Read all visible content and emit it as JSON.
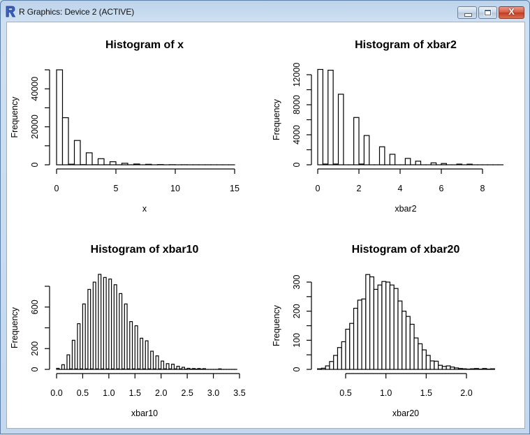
{
  "window": {
    "title": "R Graphics: Device 2 (ACTIVE)",
    "app_icon": "r-logo-icon",
    "buttons": {
      "minimize": "minimize-icon",
      "maximize": "maximize-icon",
      "close": "close-icon",
      "close_glyph": "X"
    }
  },
  "chart_data": [
    {
      "type": "bar",
      "title": "Histogram of x",
      "xlabel": "x",
      "ylabel": "Frequency",
      "xlim": [
        0,
        15
      ],
      "ylim": [
        0,
        50000
      ],
      "x_ticks": [
        0,
        5,
        10,
        15
      ],
      "x_tick_labels": [
        "0",
        "5",
        "10",
        "15"
      ],
      "y_ticks": [
        0,
        10000,
        20000,
        30000,
        40000,
        50000
      ],
      "y_tick_labels": [
        "0",
        "",
        "20000",
        "",
        "40000",
        ""
      ],
      "bin_width": 0.5,
      "bin_start": 0,
      "values": [
        50000,
        24800,
        300,
        12800,
        100,
        6300,
        50,
        3200,
        30,
        1600,
        20,
        800,
        10,
        400,
        5,
        250,
        0,
        120,
        0,
        60,
        0,
        30,
        0,
        15,
        0,
        8,
        0,
        4,
        0,
        2
      ]
    },
    {
      "type": "bar",
      "title": "Histogram of xbar2",
      "xlabel": "xbar2",
      "ylabel": "Frequency",
      "xlim": [
        0,
        8
      ],
      "ylim": [
        0,
        12000
      ],
      "x_ticks": [
        0,
        2,
        4,
        6,
        8
      ],
      "x_tick_labels": [
        "0",
        "2",
        "4",
        "6",
        "8"
      ],
      "y_ticks": [
        0,
        2000,
        4000,
        6000,
        8000,
        10000,
        12000
      ],
      "y_tick_labels": [
        "0",
        "",
        "4000",
        "",
        "8000",
        "",
        "12000"
      ],
      "bin_width": 0.25,
      "bin_start": 0,
      "values": [
        12700,
        100,
        12600,
        100,
        9400,
        0,
        0,
        6300,
        100,
        3900,
        0,
        0,
        2400,
        0,
        1400,
        0,
        0,
        850,
        0,
        480,
        0,
        0,
        260,
        0,
        170,
        0,
        0,
        90,
        0,
        80,
        0,
        0,
        0,
        0,
        0,
        0
      ]
    },
    {
      "type": "bar",
      "title": "Histogram of xbar10",
      "xlabel": "xbar10",
      "ylabel": "Frequency",
      "xlim": [
        0,
        3.5
      ],
      "ylim": [
        0,
        800
      ],
      "x_ticks": [
        0.0,
        0.5,
        1.0,
        1.5,
        2.0,
        2.5,
        3.0,
        3.5
      ],
      "x_tick_labels": [
        "0.0",
        "0.5",
        "1.0",
        "1.5",
        "2.0",
        "2.5",
        "3.0",
        "3.5"
      ],
      "y_ticks": [
        0,
        200,
        400,
        600,
        800
      ],
      "y_tick_labels": [
        "0",
        "200",
        "",
        "600",
        ""
      ],
      "bin_width": 0.05,
      "bin_start": 0,
      "values": [
        10,
        0,
        45,
        0,
        140,
        5,
        280,
        5,
        440,
        5,
        630,
        5,
        770,
        5,
        840,
        5,
        915,
        5,
        885,
        5,
        870,
        5,
        815,
        5,
        730,
        5,
        630,
        5,
        460,
        5,
        420,
        5,
        300,
        5,
        275,
        5,
        175,
        5,
        130,
        5,
        80,
        5,
        55,
        5,
        50,
        5,
        30,
        5,
        20,
        3,
        10,
        3,
        8,
        3,
        8,
        3,
        7,
        0,
        0,
        0,
        0,
        0,
        5,
        0,
        0,
        0,
        0,
        0,
        0
      ]
    },
    {
      "type": "bar",
      "title": "Histogram of xbar20",
      "xlabel": "xbar20",
      "ylabel": "Frequency",
      "xlim": [
        0.15,
        2.35
      ],
      "ylim": [
        0,
        320
      ],
      "x_ticks": [
        0.5,
        1.0,
        1.5,
        2.0
      ],
      "x_tick_labels": [
        "0.5",
        "1.0",
        "1.5",
        "2.0"
      ],
      "y_ticks": [
        0,
        50,
        100,
        150,
        200,
        250,
        300
      ],
      "y_tick_labels": [
        "0",
        "",
        "100",
        "",
        "200",
        "",
        "300"
      ],
      "bin_width": 0.05,
      "bin_start": 0.15,
      "values": [
        2,
        4,
        12,
        27,
        48,
        75,
        95,
        138,
        158,
        210,
        238,
        242,
        326,
        318,
        275,
        290,
        302,
        300,
        290,
        278,
        235,
        200,
        182,
        155,
        108,
        88,
        67,
        48,
        29,
        28,
        14,
        10,
        12,
        8,
        5,
        3,
        2,
        1,
        2,
        3,
        1,
        3,
        1,
        2
      ]
    }
  ]
}
